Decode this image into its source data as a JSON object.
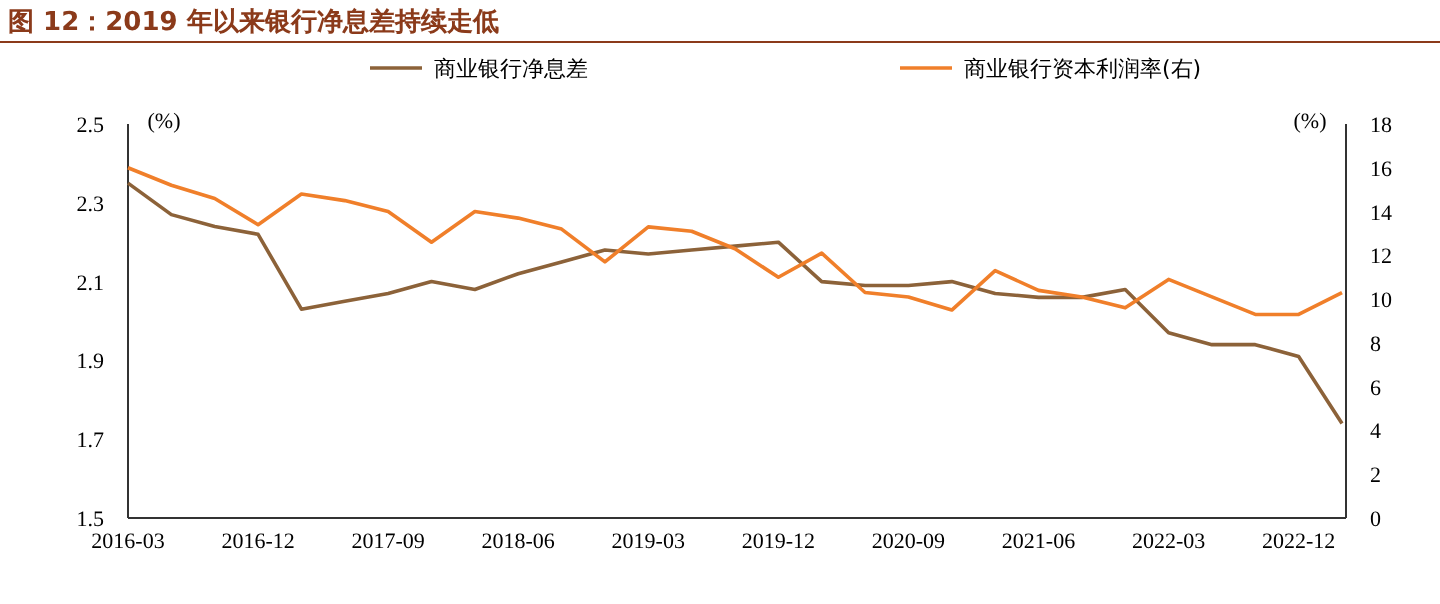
{
  "chart_data": {
    "type": "line",
    "title": "图 12：2019 年以来银行净息差持续走低",
    "categories": [
      "2016-03",
      null,
      null,
      "2016-12",
      null,
      null,
      "2017-09",
      null,
      null,
      "2018-06",
      null,
      null,
      "2019-03",
      null,
      null,
      "2019-12",
      null,
      null,
      "2020-09",
      null,
      null,
      "2021-06",
      null,
      null,
      "2022-03",
      null,
      null,
      "2022-12",
      null
    ],
    "series": [
      {
        "name": "商业银行净息差",
        "color": "#8c6239",
        "values": [
          2.35,
          2.27,
          2.24,
          2.22,
          2.03,
          2.05,
          2.07,
          2.1,
          2.08,
          2.12,
          2.15,
          2.18,
          2.17,
          2.18,
          2.19,
          2.2,
          2.1,
          2.09,
          2.09,
          2.1,
          2.07,
          2.06,
          2.06,
          2.08,
          1.97,
          1.94,
          1.94,
          1.91,
          1.74
        ]
      },
      {
        "name": "商业银行资本利润率(右)",
        "color": "#f07f2a",
        "axis": "y2",
        "values": [
          16.0,
          15.2,
          14.6,
          13.4,
          14.8,
          14.5,
          14.0,
          12.6,
          14.0,
          13.7,
          13.2,
          11.7,
          13.3,
          13.1,
          12.3,
          11.0,
          12.1,
          10.3,
          10.1,
          9.5,
          11.3,
          10.4,
          10.1,
          9.6,
          10.9,
          10.1,
          9.3,
          9.3,
          10.3
        ]
      }
    ],
    "ylabel": "(%)",
    "y2label": "(%)",
    "ylim": [
      1.5,
      2.5
    ],
    "yticks": [
      1.5,
      1.7,
      1.9,
      2.1,
      2.3,
      2.5
    ],
    "y2lim": [
      0,
      18
    ],
    "y2ticks": [
      0,
      2,
      4,
      6,
      8,
      10,
      12,
      14,
      16,
      18
    ],
    "legend": "top",
    "grid": false
  }
}
